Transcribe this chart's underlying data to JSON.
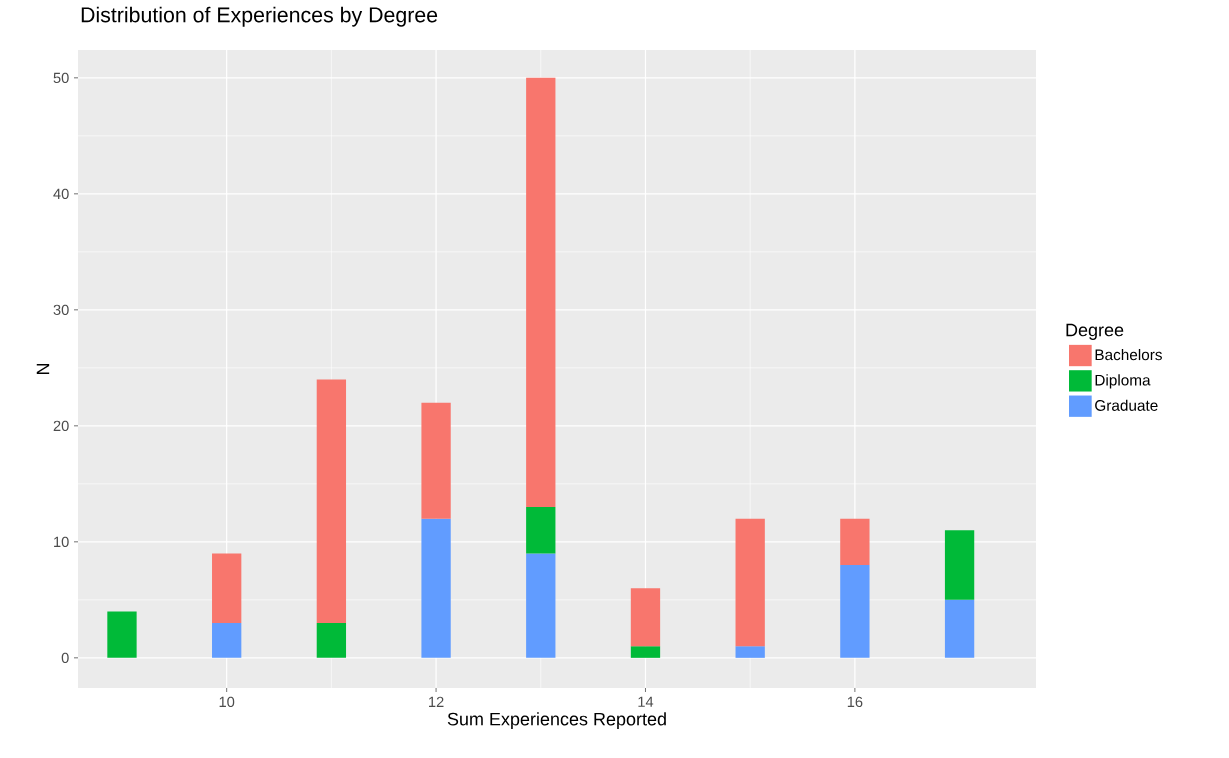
{
  "chart_data": {
    "type": "bar",
    "stacked": true,
    "title": "Distribution of Experiences by Degree",
    "xlabel": "Sum Experiences Reported",
    "ylabel": "N",
    "legend_title": "Degree",
    "x": [
      9,
      10,
      11,
      12,
      13,
      14,
      15,
      16,
      17
    ],
    "series": [
      {
        "name": "Graduate",
        "color": "#619cff",
        "values": [
          null,
          3,
          null,
          12,
          9,
          null,
          1,
          8,
          5
        ]
      },
      {
        "name": "Diploma",
        "color": "#00ba38",
        "values": [
          4,
          null,
          3,
          null,
          4,
          1,
          null,
          null,
          6
        ]
      },
      {
        "name": "Bachelors",
        "color": "#f8766d",
        "values": [
          null,
          6,
          21,
          10,
          37,
          5,
          11,
          4,
          null
        ]
      }
    ],
    "xlim": [
      8.58,
      17.73
    ],
    "ylim": [
      -2.6,
      52.4
    ],
    "xticks": [
      10,
      12,
      14,
      16
    ],
    "yticks": [
      0,
      10,
      20,
      30,
      40,
      50
    ],
    "grid": true,
    "legend": "right"
  }
}
